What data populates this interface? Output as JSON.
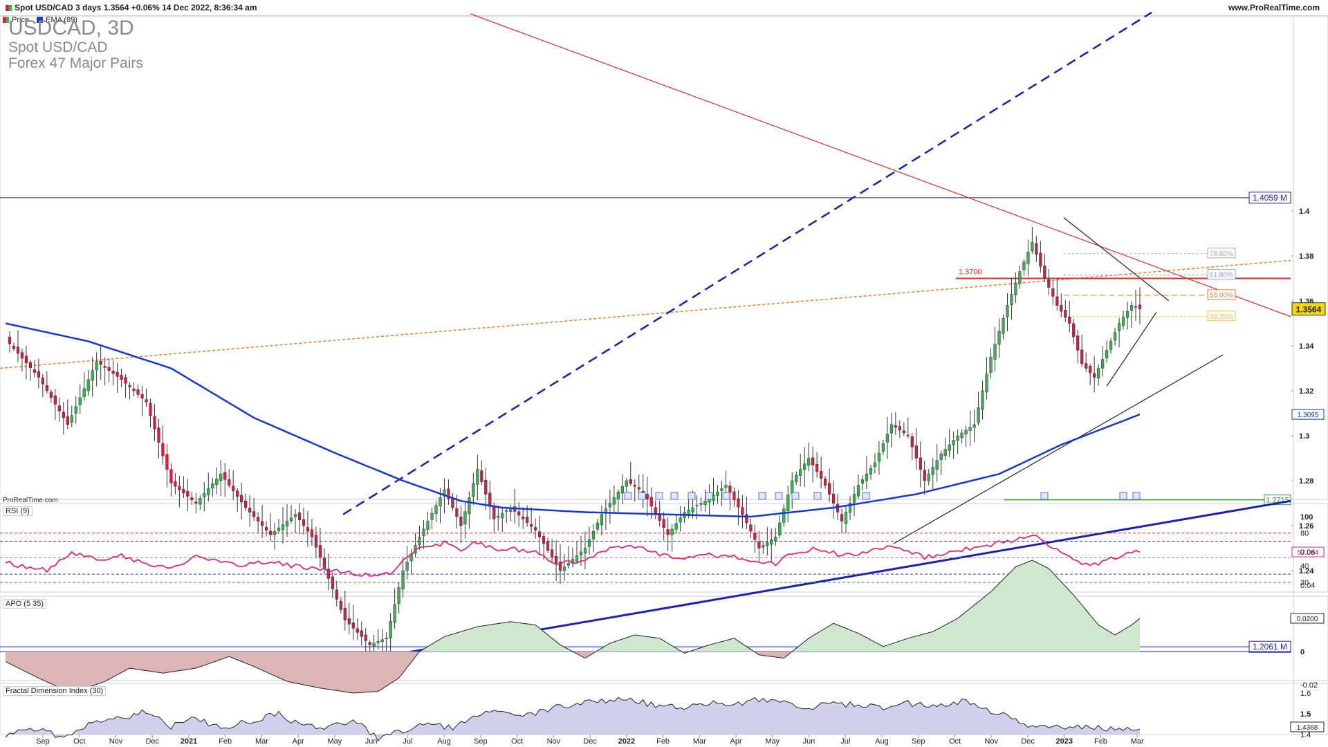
{
  "header": {
    "title": "Spot USD/CAD 3 days 1.3564 +0.06% 14 Dec 2022, 8:36:34 am",
    "site": "www.ProRealTime.com"
  },
  "legend": [
    {
      "label": "Price",
      "color": "#1a9a3a"
    },
    {
      "label": "EMA (89)",
      "color": "#1537d6"
    }
  ],
  "instrument": {
    "symbol": "USDCAD, 3D",
    "name": "Spot USD/CAD",
    "group": "Forex 47 Major Pairs"
  },
  "watermark": "ProRealTime.com",
  "colors": {
    "bull": "#2db84a",
    "bear": "#d81c3f",
    "ema": "#1537d6",
    "rsi": "#e8266b",
    "trend_blue": "#1a1fb5",
    "resist_red": "#e0292a",
    "fib_orange": "#f07a2a",
    "support_green": "#2aa52a",
    "apo_pos": "#cfe6cf",
    "apo_neg": "#dcb6b6",
    "fdi_fill": "#c8c8ea"
  },
  "chart_data": [
    {
      "type": "candlestick",
      "panel": "price",
      "y_ticks": [
        1.4,
        1.38,
        1.36,
        1.34,
        1.32,
        1.3,
        1.28,
        1.26,
        1.24,
        1.22
      ],
      "x_ticks": [
        "Sep",
        "Oct",
        "Nov",
        "Dec",
        "2021",
        "Feb",
        "Mar",
        "Apr",
        "May",
        "Jun",
        "Jul",
        "Aug",
        "Sep",
        "Oct",
        "Nov",
        "Dec",
        "2022",
        "Feb",
        "Mar",
        "Apr",
        "May",
        "Jun",
        "Jul",
        "Aug",
        "Sep",
        "Oct",
        "Nov",
        "Dec",
        "2023",
        "Feb",
        "Mar"
      ],
      "last_price": "1.3564",
      "ema_value": "1.3095",
      "levels": [
        {
          "label": "1.4059 M",
          "value": 1.4059
        },
        {
          "label": "1.2061 M",
          "value": 1.2061
        },
        {
          "label": "1.2715",
          "value": 1.2715
        }
      ],
      "resistance_label": "1.3700",
      "fib_labels": [
        "78.60%",
        "61.80%",
        "50.00%",
        "38.20%"
      ],
      "close_anchors": [
        [
          0,
          1.343
        ],
        [
          8,
          1.326
        ],
        [
          15,
          1.305
        ],
        [
          22,
          1.333
        ],
        [
          28,
          1.325
        ],
        [
          34,
          1.315
        ],
        [
          40,
          1.279
        ],
        [
          46,
          1.27
        ],
        [
          52,
          1.283
        ],
        [
          58,
          1.268
        ],
        [
          64,
          1.256
        ],
        [
          70,
          1.265
        ],
        [
          74,
          1.255
        ],
        [
          82,
          1.218
        ],
        [
          88,
          1.207
        ],
        [
          92,
          1.21
        ],
        [
          96,
          1.24
        ],
        [
          100,
          1.255
        ],
        [
          106,
          1.276
        ],
        [
          110,
          1.26
        ],
        [
          114,
          1.285
        ],
        [
          118,
          1.263
        ],
        [
          122,
          1.268
        ],
        [
          128,
          1.258
        ],
        [
          134,
          1.24
        ],
        [
          140,
          1.25
        ],
        [
          144,
          1.265
        ],
        [
          150,
          1.28
        ],
        [
          154,
          1.275
        ],
        [
          160,
          1.256
        ],
        [
          164,
          1.266
        ],
        [
          170,
          1.272
        ],
        [
          174,
          1.278
        ],
        [
          178,
          1.265
        ],
        [
          182,
          1.25
        ],
        [
          186,
          1.255
        ],
        [
          190,
          1.28
        ],
        [
          194,
          1.29
        ],
        [
          198,
          1.278
        ],
        [
          202,
          1.262
        ],
        [
          206,
          1.278
        ],
        [
          210,
          1.288
        ],
        [
          214,
          1.305
        ],
        [
          218,
          1.3
        ],
        [
          222,
          1.28
        ],
        [
          226,
          1.292
        ],
        [
          230,
          1.3
        ],
        [
          234,
          1.305
        ],
        [
          238,
          1.335
        ],
        [
          242,
          1.358
        ],
        [
          245,
          1.373
        ],
        [
          248,
          1.386
        ],
        [
          251,
          1.37
        ],
        [
          254,
          1.358
        ],
        [
          257,
          1.35
        ],
        [
          260,
          1.332
        ],
        [
          263,
          1.326
        ],
        [
          266,
          1.338
        ],
        [
          269,
          1.35
        ],
        [
          272,
          1.358
        ],
        [
          274,
          1.3564
        ]
      ],
      "ema_anchors": [
        [
          0,
          1.35
        ],
        [
          20,
          1.342
        ],
        [
          40,
          1.33
        ],
        [
          60,
          1.308
        ],
        [
          80,
          1.292
        ],
        [
          96,
          1.28
        ],
        [
          110,
          1.271
        ],
        [
          120,
          1.268
        ],
        [
          140,
          1.266
        ],
        [
          160,
          1.265
        ],
        [
          180,
          1.264
        ],
        [
          200,
          1.268
        ],
        [
          220,
          1.274
        ],
        [
          240,
          1.283
        ],
        [
          255,
          1.296
        ],
        [
          274,
          1.3095
        ]
      ]
    },
    {
      "type": "line",
      "panel": "rsi",
      "label": "RSI (9)",
      "y_ticks": [
        100,
        80,
        60,
        40,
        20
      ],
      "last": "57.084",
      "anchors": [
        [
          0,
          44
        ],
        [
          6,
          38
        ],
        [
          10,
          34
        ],
        [
          16,
          55
        ],
        [
          22,
          48
        ],
        [
          28,
          52
        ],
        [
          34,
          42
        ],
        [
          40,
          38
        ],
        [
          46,
          52
        ],
        [
          52,
          44
        ],
        [
          58,
          42
        ],
        [
          64,
          44
        ],
        [
          70,
          40
        ],
        [
          76,
          36
        ],
        [
          82,
          32
        ],
        [
          88,
          28
        ],
        [
          93,
          30
        ],
        [
          96,
          45
        ],
        [
          100,
          62
        ],
        [
          106,
          68
        ],
        [
          110,
          60
        ],
        [
          114,
          70
        ],
        [
          118,
          60
        ],
        [
          122,
          62
        ],
        [
          128,
          56
        ],
        [
          134,
          42
        ],
        [
          140,
          48
        ],
        [
          146,
          60
        ],
        [
          150,
          64
        ],
        [
          156,
          58
        ],
        [
          162,
          48
        ],
        [
          168,
          54
        ],
        [
          174,
          52
        ],
        [
          180,
          48
        ],
        [
          186,
          42
        ],
        [
          190,
          56
        ],
        [
          196,
          62
        ],
        [
          202,
          52
        ],
        [
          208,
          56
        ],
        [
          214,
          64
        ],
        [
          218,
          60
        ],
        [
          222,
          50
        ],
        [
          230,
          58
        ],
        [
          238,
          66
        ],
        [
          244,
          72
        ],
        [
          249,
          76
        ],
        [
          252,
          64
        ],
        [
          256,
          52
        ],
        [
          260,
          44
        ],
        [
          264,
          42
        ],
        [
          268,
          50
        ],
        [
          271,
          58
        ],
        [
          274,
          57
        ]
      ]
    },
    {
      "type": "area",
      "panel": "apo",
      "label": "APO (5 35)",
      "y_ticks": [
        0.06,
        0.04,
        0.02,
        0,
        -0.02
      ],
      "last": "0.0200",
      "anchors": [
        [
          0,
          -0.006
        ],
        [
          8,
          -0.016
        ],
        [
          16,
          -0.025
        ],
        [
          24,
          -0.018
        ],
        [
          30,
          -0.01
        ],
        [
          38,
          -0.013
        ],
        [
          46,
          -0.01
        ],
        [
          54,
          -0.003
        ],
        [
          60,
          -0.009
        ],
        [
          68,
          -0.018
        ],
        [
          76,
          -0.022
        ],
        [
          84,
          -0.025
        ],
        [
          90,
          -0.024
        ],
        [
          95,
          -0.016
        ],
        [
          100,
          0.0
        ],
        [
          106,
          0.009
        ],
        [
          114,
          0.015
        ],
        [
          122,
          0.018
        ],
        [
          128,
          0.016
        ],
        [
          134,
          0.004
        ],
        [
          140,
          -0.004
        ],
        [
          146,
          0.005
        ],
        [
          152,
          0.01
        ],
        [
          158,
          0.008
        ],
        [
          164,
          -0.001
        ],
        [
          170,
          0.004
        ],
        [
          176,
          0.008
        ],
        [
          182,
          -0.002
        ],
        [
          188,
          -0.004
        ],
        [
          194,
          0.008
        ],
        [
          200,
          0.017
        ],
        [
          206,
          0.011
        ],
        [
          212,
          0.003
        ],
        [
          218,
          0.008
        ],
        [
          224,
          0.012
        ],
        [
          230,
          0.02
        ],
        [
          238,
          0.036
        ],
        [
          244,
          0.051
        ],
        [
          248,
          0.055
        ],
        [
          252,
          0.05
        ],
        [
          258,
          0.034
        ],
        [
          264,
          0.016
        ],
        [
          268,
          0.01
        ],
        [
          272,
          0.016
        ],
        [
          274,
          0.02
        ]
      ]
    },
    {
      "type": "area",
      "panel": "fdi",
      "label": "Fractal Dimension Index (30)",
      "y_ticks": [
        1.6,
        1.5,
        1.4
      ],
      "last": "1.4368",
      "anchors": [
        [
          0,
          1.4
        ],
        [
          8,
          1.42
        ],
        [
          14,
          1.39
        ],
        [
          20,
          1.45
        ],
        [
          26,
          1.47
        ],
        [
          34,
          1.51
        ],
        [
          40,
          1.44
        ],
        [
          46,
          1.48
        ],
        [
          52,
          1.43
        ],
        [
          58,
          1.46
        ],
        [
          66,
          1.5
        ],
        [
          72,
          1.44
        ],
        [
          78,
          1.43
        ],
        [
          84,
          1.47
        ],
        [
          90,
          1.38
        ],
        [
          96,
          1.42
        ],
        [
          102,
          1.45
        ],
        [
          108,
          1.43
        ],
        [
          114,
          1.5
        ],
        [
          120,
          1.52
        ],
        [
          126,
          1.49
        ],
        [
          132,
          1.53
        ],
        [
          140,
          1.55
        ],
        [
          146,
          1.57
        ],
        [
          152,
          1.56
        ],
        [
          158,
          1.54
        ],
        [
          164,
          1.53
        ],
        [
          170,
          1.55
        ],
        [
          176,
          1.54
        ],
        [
          182,
          1.57
        ],
        [
          188,
          1.56
        ],
        [
          194,
          1.53
        ],
        [
          200,
          1.55
        ],
        [
          206,
          1.54
        ],
        [
          212,
          1.53
        ],
        [
          218,
          1.55
        ],
        [
          224,
          1.54
        ],
        [
          232,
          1.56
        ],
        [
          240,
          1.5
        ],
        [
          246,
          1.45
        ],
        [
          252,
          1.43
        ],
        [
          258,
          1.44
        ],
        [
          264,
          1.43
        ],
        [
          270,
          1.42
        ],
        [
          274,
          1.4368
        ]
      ]
    }
  ]
}
